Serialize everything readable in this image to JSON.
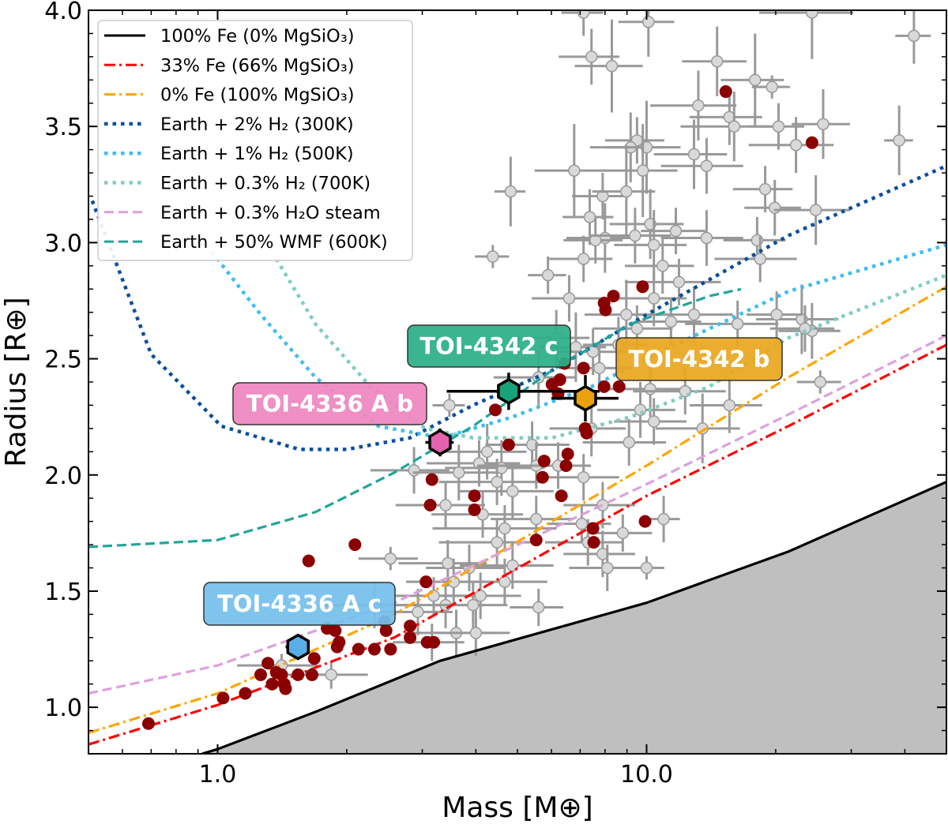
{
  "chart_data": {
    "type": "scatter",
    "title": "",
    "xlabel": "Mass [M⊕]",
    "ylabel": "Radius [R⊕]",
    "xscale": "log",
    "xlim": [
      0.5,
      50
    ],
    "ylim": [
      0.8,
      4.0
    ],
    "xticks": [
      {
        "v": 1.0,
        "label": "1.0"
      },
      {
        "v": 10.0,
        "label": "10.0"
      }
    ],
    "yticks": [
      {
        "v": 1.0,
        "label": "1.0"
      },
      {
        "v": 1.5,
        "label": "1.5"
      },
      {
        "v": 2.0,
        "label": "2.0"
      },
      {
        "v": 2.5,
        "label": "2.5"
      },
      {
        "v": 3.0,
        "label": "3.0"
      },
      {
        "v": 3.5,
        "label": "3.5"
      },
      {
        "v": 4.0,
        "label": "4.0"
      }
    ],
    "grid": false,
    "legend_placement": "top-left",
    "models": [
      {
        "name": "100% Fe (0% MgSiO₃)",
        "color": "#000000",
        "style": "solid",
        "fill_below": "#bfbfbf",
        "points": [
          [
            0.92,
            0.8
          ],
          [
            1.0,
            0.82
          ],
          [
            1.69,
            0.98
          ],
          [
            3.3,
            1.2
          ],
          [
            10,
            1.45
          ],
          [
            21.4,
            1.67
          ],
          [
            50,
            1.97
          ]
        ]
      },
      {
        "name": "33% Fe (66% MgSiO₃)",
        "color": "#ff0000",
        "style": "dashdot",
        "points": [
          [
            0.5,
            0.84
          ],
          [
            1.0,
            1.01
          ],
          [
            2.58,
            1.3
          ],
          [
            10,
            1.91
          ],
          [
            21.4,
            2.21
          ],
          [
            50,
            2.56
          ]
        ]
      },
      {
        "name": "0% Fe (100% MgSiO₃)",
        "color": "#ffa500",
        "style": "dashdot",
        "points": [
          [
            0.5,
            0.89
          ],
          [
            1.0,
            1.06
          ],
          [
            2.58,
            1.4
          ],
          [
            10,
            2.04
          ],
          [
            21.4,
            2.42
          ],
          [
            50,
            2.81
          ]
        ]
      },
      {
        "name": "Earth + 2% H₂ (300K)",
        "color": "#0a4f9e",
        "style": "dotted",
        "points": [
          [
            0.51,
            3.18
          ],
          [
            0.7,
            2.52
          ],
          [
            1.02,
            2.21
          ],
          [
            1.55,
            2.11
          ],
          [
            2.0,
            2.11
          ],
          [
            2.81,
            2.16
          ],
          [
            3.94,
            2.3
          ],
          [
            6.02,
            2.45
          ],
          [
            10,
            2.69
          ],
          [
            21.4,
            3.03
          ],
          [
            50,
            3.33
          ]
        ]
      },
      {
        "name": "Earth + 1% H₂ (500K)",
        "color": "#3fbdf2",
        "style": "dotted",
        "points": [
          [
            0.97,
            2.96
          ],
          [
            1.26,
            2.69
          ],
          [
            1.69,
            2.42
          ],
          [
            2.37,
            2.21
          ],
          [
            3.33,
            2.16
          ],
          [
            4.87,
            2.25
          ],
          [
            7.44,
            2.38
          ],
          [
            11.36,
            2.55
          ],
          [
            21.4,
            2.79
          ],
          [
            50,
            2.99
          ]
        ]
      },
      {
        "name": "Earth + 0.3% H₂ (700K)",
        "color": "#7fcdc4",
        "style": "dotted",
        "points": [
          [
            1.37,
            2.93
          ],
          [
            1.69,
            2.65
          ],
          [
            2.27,
            2.38
          ],
          [
            3.05,
            2.2
          ],
          [
            3.94,
            2.16
          ],
          [
            6.02,
            2.16
          ],
          [
            9.18,
            2.25
          ],
          [
            14.0,
            2.38
          ],
          [
            21.4,
            2.59
          ],
          [
            50,
            2.86
          ]
        ]
      },
      {
        "name": "Earth + 0.3% H₂O steam",
        "color": "#dda0dd",
        "style": "dashed",
        "points": [
          [
            0.5,
            1.06
          ],
          [
            1.0,
            1.18
          ],
          [
            2.58,
            1.45
          ],
          [
            10,
            1.96
          ],
          [
            21.4,
            2.26
          ],
          [
            50,
            2.6
          ]
        ]
      },
      {
        "name": "Earth + 50% WMF (600K)",
        "color": "#20a59a",
        "style": "dashed",
        "points": [
          [
            0.5,
            1.69
          ],
          [
            1.0,
            1.72
          ],
          [
            1.69,
            1.84
          ],
          [
            2.58,
            2.01
          ],
          [
            3.94,
            2.21
          ],
          [
            6.02,
            2.45
          ],
          [
            9.18,
            2.65
          ],
          [
            14.0,
            2.77
          ],
          [
            16.6,
            2.8
          ]
        ]
      }
    ],
    "known_planets_gray": {
      "color": "#d9d9d9",
      "edge": "#999999",
      "points": [
        [
          7.13,
          3.99,
          0.8,
          0.1
        ],
        [
          10.1,
          3.95,
          1.5,
          0.15
        ],
        [
          7.44,
          3.8,
          1.2,
          0.12
        ],
        [
          8.3,
          3.76,
          1.5,
          0.2
        ],
        [
          14.6,
          3.78,
          2.5,
          0.15
        ],
        [
          19.6,
          3.67,
          2.0,
          0.05
        ],
        [
          17.9,
          3.7,
          3,
          0.2
        ],
        [
          42,
          3.89,
          4,
          0.12
        ],
        [
          24.3,
          3.99,
          6,
          0.2
        ],
        [
          13.2,
          3.59,
          3,
          0.15
        ],
        [
          15.6,
          3.54,
          3,
          0.12
        ],
        [
          16.0,
          3.5,
          4,
          0.15
        ],
        [
          20.3,
          3.5,
          3,
          0.1
        ],
        [
          25.8,
          3.51,
          4,
          0.15
        ],
        [
          22.3,
          3.42,
          5,
          0.12
        ],
        [
          38.8,
          3.44,
          3,
          0.15
        ],
        [
          9.5,
          3.44,
          1.5,
          0.1
        ],
        [
          9.18,
          3.41,
          1.8,
          0.15
        ],
        [
          10,
          3.41,
          2,
          0.2
        ],
        [
          12.9,
          3.38,
          2.5,
          0.15
        ],
        [
          13.8,
          3.33,
          3,
          0.12
        ],
        [
          4.82,
          3.22,
          0.4,
          0.15
        ],
        [
          6.78,
          3.31,
          1.3,
          0.2
        ],
        [
          9.8,
          3.31,
          2,
          0.2
        ],
        [
          7.9,
          3.2,
          1.2,
          0.1
        ],
        [
          8.97,
          3.22,
          1.5,
          0.2
        ],
        [
          18.9,
          3.23,
          3,
          0.1
        ],
        [
          19.9,
          3.15,
          3,
          0.12
        ],
        [
          24.8,
          3.14,
          5,
          0.15
        ],
        [
          7.37,
          3.11,
          1,
          0.12
        ],
        [
          8.0,
          3.02,
          1.5,
          0.15
        ],
        [
          7.6,
          3.01,
          1.2,
          0.1
        ],
        [
          9.4,
          3.03,
          2,
          0.12
        ],
        [
          10.2,
          3.08,
          2,
          0.15
        ],
        [
          11.7,
          3.05,
          2,
          0.1
        ],
        [
          13.8,
          3.02,
          3,
          0.12
        ],
        [
          18.1,
          3.01,
          3,
          0.1
        ],
        [
          18.4,
          2.93,
          4,
          0.1
        ],
        [
          4.38,
          2.94,
          0.4,
          0.05
        ],
        [
          7.13,
          2.93,
          1.2,
          0.1
        ],
        [
          10.4,
          2.99,
          2,
          0.15
        ],
        [
          10.9,
          2.9,
          2,
          0.12
        ],
        [
          5.89,
          2.86,
          0.6,
          0.08
        ],
        [
          11.9,
          2.83,
          3,
          0.1
        ],
        [
          10.4,
          2.76,
          2,
          0.12
        ],
        [
          6.6,
          2.76,
          1.2,
          0.1
        ],
        [
          12.9,
          2.69,
          3,
          0.12
        ],
        [
          23.0,
          2.67,
          5,
          0.15
        ],
        [
          20.1,
          2.69,
          3,
          0.1
        ],
        [
          11.4,
          2.66,
          2,
          0.1
        ],
        [
          8.97,
          2.69,
          1.8,
          0.15
        ],
        [
          9.5,
          2.63,
          2,
          0.1
        ],
        [
          24.3,
          2.62,
          4,
          0.12
        ],
        [
          23.4,
          2.63,
          4,
          0.1
        ],
        [
          16.3,
          2.65,
          4,
          0.1
        ],
        [
          6.16,
          2.59,
          1.2,
          0.12
        ],
        [
          6.84,
          2.55,
          1.2,
          0.15
        ],
        [
          7.5,
          2.53,
          1.5,
          0.1
        ],
        [
          8.6,
          2.56,
          1.5,
          0.12
        ],
        [
          7.76,
          2.46,
          1.5,
          0.1
        ],
        [
          5.6,
          2.42,
          1.2,
          0.12
        ],
        [
          3.47,
          2.3,
          0.3,
          0.05
        ],
        [
          10.2,
          2.37,
          2.5,
          0.12
        ],
        [
          12.3,
          2.36,
          3,
          0.1
        ],
        [
          9.67,
          2.28,
          2,
          0.12
        ],
        [
          10.4,
          2.23,
          2,
          0.1
        ],
        [
          15.6,
          2.3,
          3,
          0.12
        ],
        [
          25.4,
          2.4,
          3,
          0.05
        ],
        [
          13.5,
          2.2,
          3,
          0.15
        ],
        [
          7.44,
          2.2,
          1.5,
          0.12
        ],
        [
          9.1,
          2.14,
          2,
          0.1
        ],
        [
          5.41,
          2.13,
          1.2,
          0.1
        ],
        [
          4.25,
          2.1,
          1,
          0.12
        ],
        [
          4.07,
          2.05,
          1,
          0.1
        ],
        [
          4.59,
          2.03,
          1.2,
          0.12
        ],
        [
          5.53,
          2.04,
          1.5,
          0.1
        ],
        [
          6.22,
          2.04,
          1.2,
          0.1
        ],
        [
          2.87,
          2.02,
          0.6,
          0.1
        ],
        [
          3.65,
          2.01,
          0.8,
          0.12
        ],
        [
          4.48,
          1.97,
          1.2,
          0.1
        ],
        [
          7.13,
          1.99,
          1.5,
          0.1
        ],
        [
          4.87,
          1.93,
          1.2,
          0.12
        ],
        [
          3.4,
          1.87,
          0.8,
          0.1
        ],
        [
          4.15,
          1.83,
          1,
          0.1
        ],
        [
          7.9,
          1.87,
          1.5,
          0.1
        ],
        [
          5.53,
          1.81,
          1.2,
          0.1
        ],
        [
          7.06,
          1.79,
          1.2,
          0.08
        ],
        [
          4.67,
          1.77,
          1.5,
          0.1
        ],
        [
          10.96,
          1.81,
          1,
          0.1
        ],
        [
          8.8,
          1.75,
          1.5,
          0.08
        ],
        [
          4.48,
          1.71,
          1.2,
          0.1
        ],
        [
          7.3,
          1.71,
          1.5,
          0.1
        ],
        [
          7.9,
          1.66,
          1.5,
          0.1
        ],
        [
          2.53,
          1.64,
          0.4,
          0.05
        ],
        [
          3.86,
          1.6,
          0.8,
          0.1
        ],
        [
          4.87,
          1.61,
          1.2,
          0.1
        ],
        [
          3.44,
          1.62,
          0.8,
          0.1
        ],
        [
          10,
          1.6,
          1,
          0.05
        ],
        [
          8.1,
          1.6,
          1.5,
          0.1
        ],
        [
          4.67,
          1.54,
          1.2,
          0.1
        ],
        [
          3.55,
          1.54,
          0.8,
          0.1
        ],
        [
          4.1,
          1.48,
          1,
          0.1
        ],
        [
          3.19,
          1.48,
          0.6,
          0.08
        ],
        [
          3.4,
          1.44,
          0.8,
          0.1
        ],
        [
          3.94,
          1.44,
          0.8,
          0.1
        ],
        [
          5.6,
          1.43,
          0.8,
          0.08
        ],
        [
          2.93,
          1.41,
          0.6,
          0.1
        ],
        [
          3.6,
          1.32,
          0.8,
          0.1
        ],
        [
          4.0,
          1.32,
          0.8,
          0.1
        ],
        [
          3.16,
          1.28,
          0.6,
          0.08
        ],
        [
          2.32,
          1.44,
          0.6,
          0.1
        ],
        [
          1.84,
          1.14,
          0.4,
          0.06
        ],
        [
          1.41,
          1.18,
          0.3,
          0.05
        ]
      ]
    },
    "known_planets_red": {
      "color": "#8b0000",
      "points": [
        [
          0.69,
          0.93
        ],
        [
          1.03,
          1.04
        ],
        [
          1.16,
          1.06
        ],
        [
          1.31,
          1.19
        ],
        [
          1.26,
          1.14
        ],
        [
          1.34,
          1.1
        ],
        [
          1.37,
          1.15
        ],
        [
          1.43,
          1.1
        ],
        [
          1.44,
          1.08
        ],
        [
          1.54,
          1.14
        ],
        [
          1.66,
          1.14
        ],
        [
          1.68,
          1.21
        ],
        [
          1.88,
          1.33
        ],
        [
          1.92,
          1.28
        ],
        [
          1.9,
          1.26
        ],
        [
          2.13,
          1.25
        ],
        [
          2.32,
          1.25
        ],
        [
          2.47,
          1.33
        ],
        [
          2.45,
          1.37
        ],
        [
          2.53,
          1.25
        ],
        [
          2.81,
          1.3
        ],
        [
          2.81,
          1.35
        ],
        [
          3.06,
          1.54
        ],
        [
          3.08,
          1.28
        ],
        [
          3.19,
          1.28
        ],
        [
          3.16,
          1.98
        ],
        [
          3.13,
          1.87
        ],
        [
          3.97,
          1.91
        ],
        [
          3.97,
          1.85
        ],
        [
          4.77,
          2.13
        ],
        [
          4.44,
          2.28
        ],
        [
          5.77,
          2.06
        ],
        [
          5.72,
          1.99
        ],
        [
          6.33,
          1.91
        ],
        [
          6.55,
          2.09
        ],
        [
          6.49,
          2.04
        ],
        [
          7.25,
          2.18
        ],
        [
          7.19,
          2.2
        ],
        [
          7.13,
          2.46
        ],
        [
          6.28,
          2.41
        ],
        [
          6.22,
          2.35
        ],
        [
          8.02,
          2.71
        ],
        [
          7.96,
          2.74
        ],
        [
          8.37,
          2.77
        ],
        [
          8.63,
          2.38
        ],
        [
          7.96,
          2.38
        ],
        [
          9.79,
          2.81
        ],
        [
          9.92,
          1.8
        ],
        [
          7.5,
          1.77
        ],
        [
          7.53,
          1.71
        ],
        [
          5.53,
          1.72
        ],
        [
          2.09,
          1.7
        ],
        [
          1.63,
          1.63
        ],
        [
          15.3,
          3.65
        ],
        [
          24.3,
          3.43
        ],
        [
          6.02,
          2.39
        ],
        [
          6.44,
          2.48
        ],
        [
          1.41,
          1.14
        ],
        [
          1.8,
          1.34
        ]
      ]
    },
    "highlighted_planets": [
      {
        "name": "TOI-4336 A c",
        "m": 1.54,
        "r": 1.26,
        "m_err": [
          0.1,
          0.1
        ],
        "r_err": [
          0.05,
          0.05
        ],
        "color": "#5aaee6",
        "label_color": "#74bfec"
      },
      {
        "name": "TOI-4336 A b",
        "m": 3.3,
        "r": 2.14,
        "m_err": [
          0.25,
          0.25
        ],
        "r_err": [
          0.06,
          0.06
        ],
        "color": "#e463ae",
        "label_color": "#ee86bf"
      },
      {
        "name": "TOI-4342 c",
        "m": 4.77,
        "r": 2.36,
        "m_err": [
          1.35,
          3.0
        ],
        "r_err": [
          0.08,
          0.08
        ],
        "color": "#17a27a",
        "label_color": "#2caf88"
      },
      {
        "name": "TOI-4342 b",
        "m": 7.2,
        "r": 2.33,
        "m_err": [
          1.2,
          1.4
        ],
        "r_err": [
          0.1,
          0.1
        ],
        "color": "#e9a10e",
        "label_color": "#eaa720"
      }
    ]
  }
}
